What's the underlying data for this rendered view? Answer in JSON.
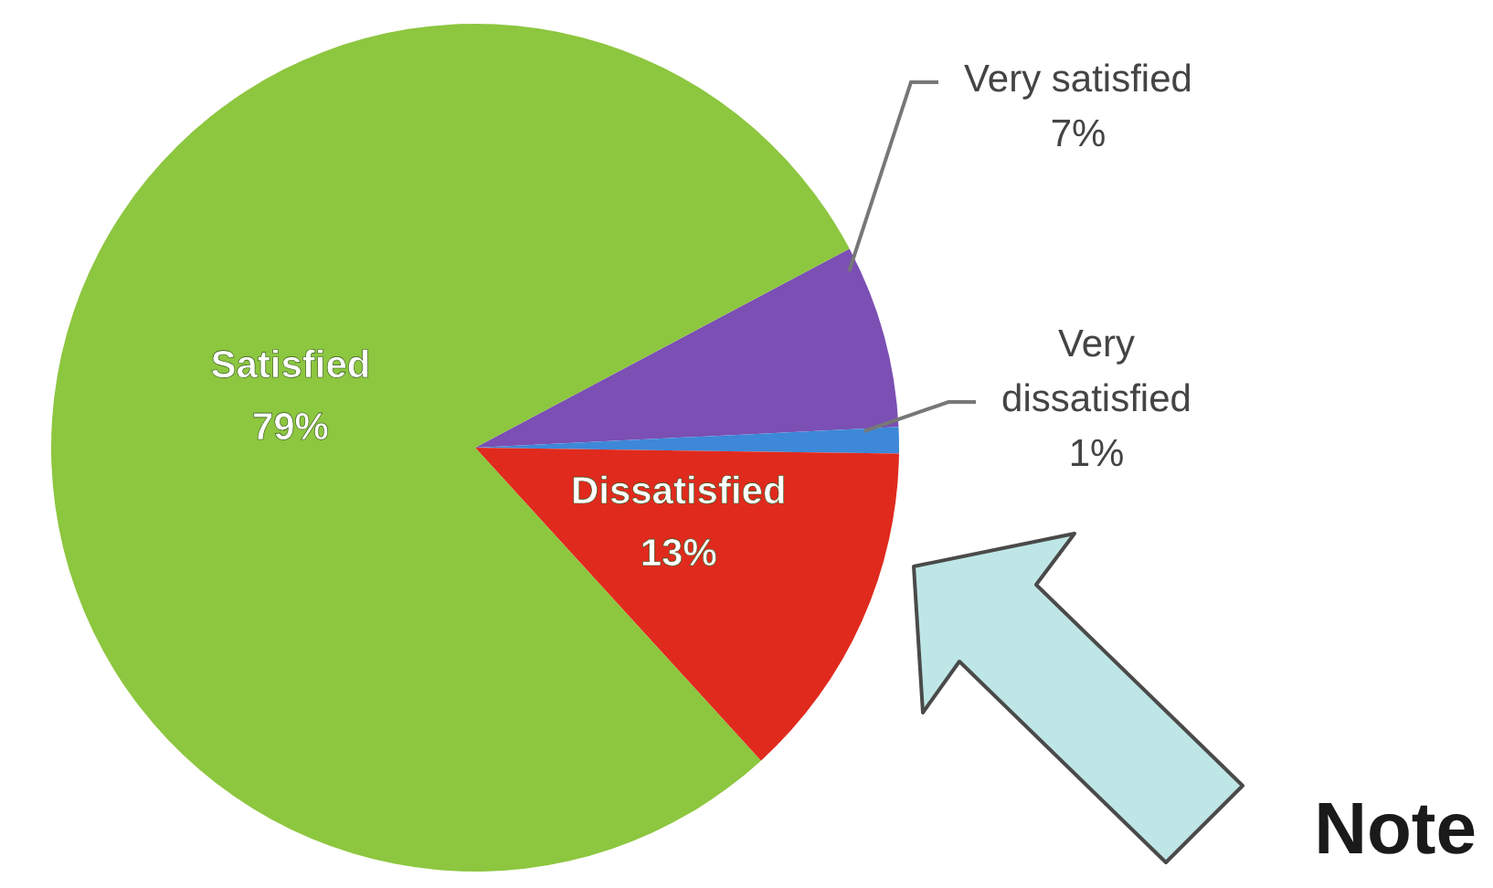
{
  "chart_data": {
    "type": "pie",
    "categories": [
      "Very satisfied",
      "Very dissatisfied",
      "Dissatisfied",
      "Satisfied"
    ],
    "values": [
      7,
      1,
      13,
      79
    ],
    "value_labels": [
      "7%",
      "1%",
      "13%",
      "79%"
    ],
    "colors": [
      "#7b4fb3",
      "#3d88d8",
      "#e02a1e",
      "#8dc63f"
    ],
    "annotations": [
      "Note"
    ]
  }
}
